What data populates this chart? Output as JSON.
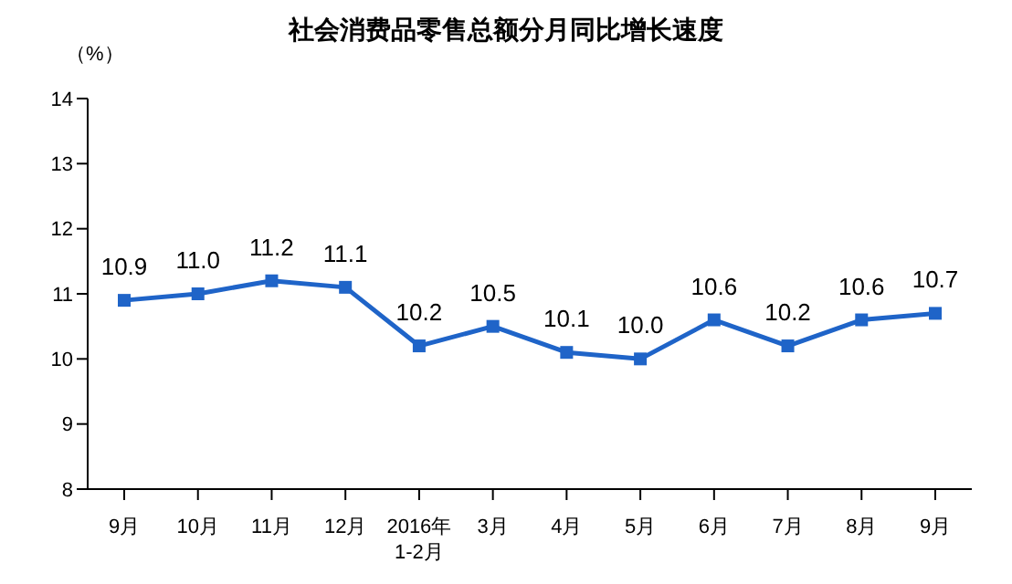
{
  "chart_data": {
    "type": "line",
    "title": "社会消费品零售总额分月同比增长速度",
    "ylabel": "（%）",
    "categories": [
      "9月",
      "10月",
      "11月",
      "12月",
      "2016年\n1-2月",
      "3月",
      "4月",
      "5月",
      "6月",
      "7月",
      "8月",
      "9月"
    ],
    "series": [
      {
        "color": "#1f64c8",
        "values": [
          10.9,
          11.0,
          11.2,
          11.1,
          10.2,
          10.5,
          10.1,
          10.0,
          10.6,
          10.2,
          10.6,
          10.7
        ],
        "value_labels": [
          "10.9",
          "11.0",
          "11.2",
          "11.1",
          "10.2",
          "10.5",
          "10.1",
          "10.0",
          "10.6",
          "10.2",
          "10.6",
          "10.7"
        ]
      }
    ],
    "ylim": [
      8,
      14
    ],
    "yticks": [
      8,
      9,
      10,
      11,
      12,
      13,
      14
    ],
    "grid": false,
    "legend": false,
    "marker": "square",
    "line_style": "solid"
  }
}
